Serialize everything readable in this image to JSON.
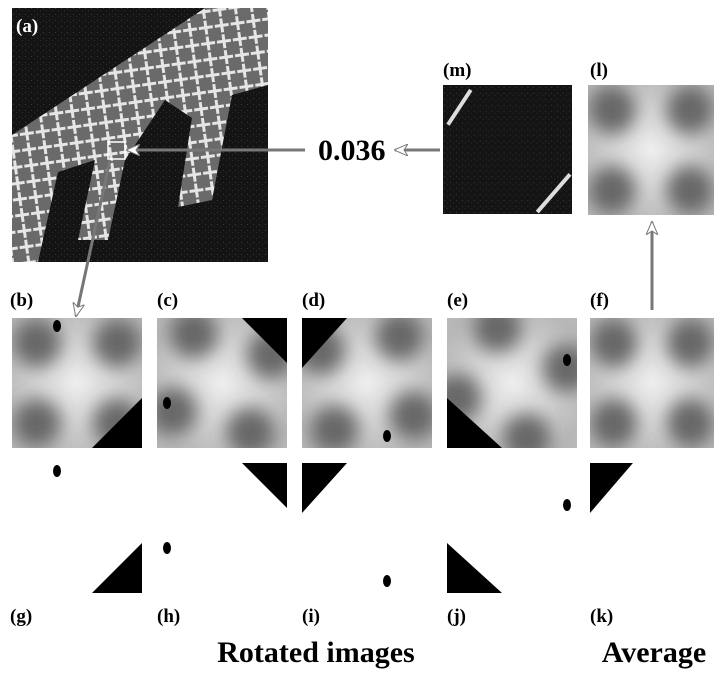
{
  "panels": [
    "(a)",
    "(b)",
    "(c)",
    "(d)",
    "(e)",
    "(f)",
    "(g)",
    "(h)",
    "(i)",
    "(j)",
    "(k)",
    "(l)",
    "(m)"
  ],
  "score": "0.036",
  "captions": [
    "Rotated images",
    "Average"
  ]
}
